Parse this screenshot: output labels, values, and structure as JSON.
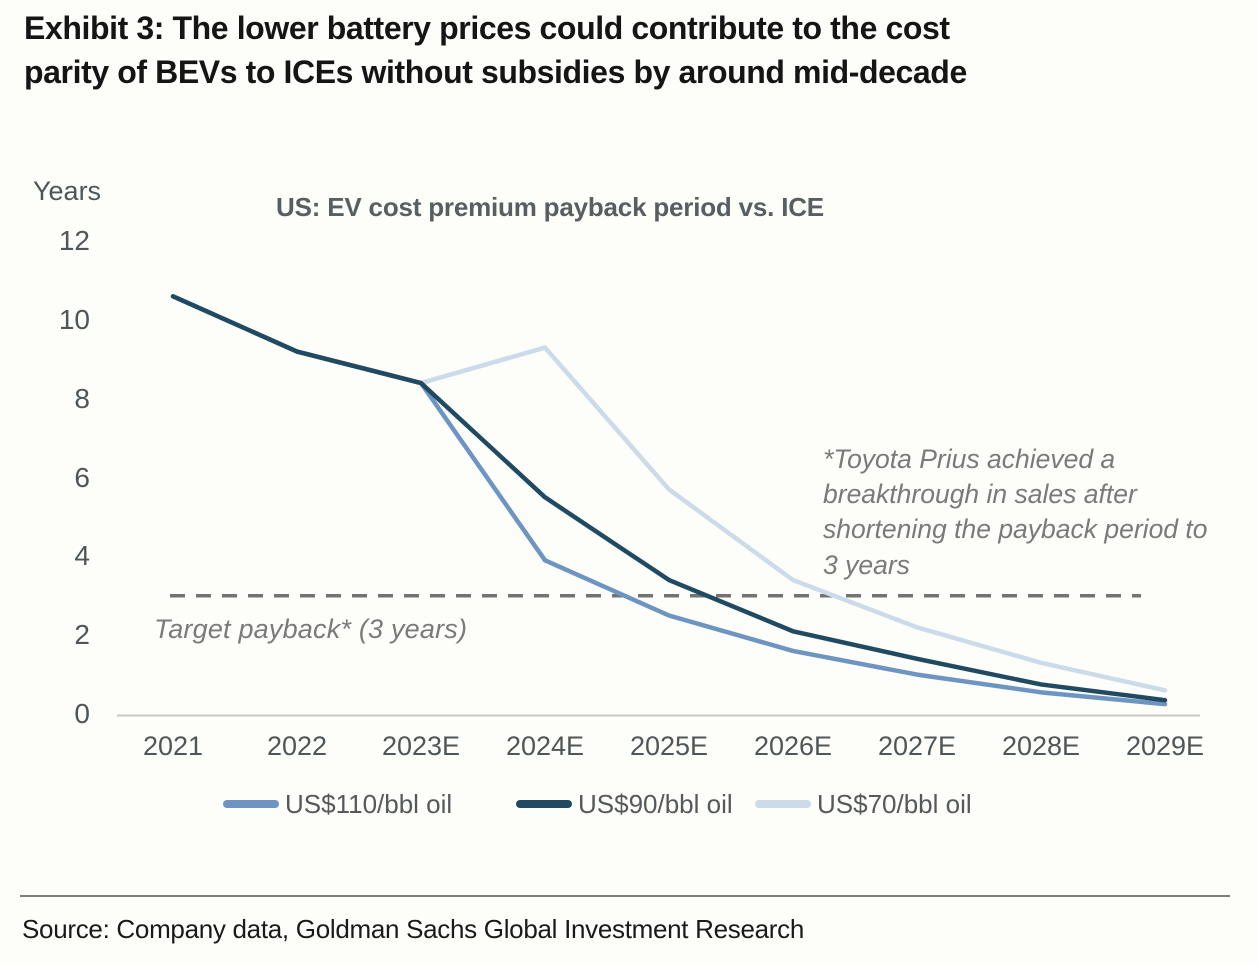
{
  "header": {
    "title_lines": [
      "Exhibit 3: The lower battery prices could contribute to the cost",
      "parity of BEVs to ICEs without subsidies by around mid-decade"
    ]
  },
  "chart_data": {
    "type": "line",
    "title": "US: EV cost premium payback period vs. ICE",
    "ylabel": "Years",
    "xlabel": "",
    "ylim": [
      0,
      12
    ],
    "yticks": [
      12,
      10,
      8,
      6,
      4,
      2,
      0
    ],
    "grid": false,
    "legend_position": "bottom",
    "categories": [
      "2021",
      "2022",
      "2023E",
      "2024E",
      "2025E",
      "2026E",
      "2027E",
      "2028E",
      "2029E"
    ],
    "series": [
      {
        "name": "US$110/bbl oil",
        "color": "#6e95c1",
        "values": [
          10.6,
          9.2,
          8.4,
          3.9,
          2.5,
          1.6,
          1.0,
          0.55,
          0.25
        ]
      },
      {
        "name": "US$90/bbl oil",
        "color": "#204a62",
        "values": [
          10.6,
          9.2,
          8.4,
          5.5,
          3.4,
          2.1,
          1.4,
          0.75,
          0.35
        ]
      },
      {
        "name": "US$70/bbl oil",
        "color": "#ccdbea",
        "values": [
          10.6,
          9.2,
          8.4,
          9.3,
          5.7,
          3.4,
          2.2,
          1.3,
          0.6
        ]
      }
    ],
    "target_line": {
      "value": 3,
      "label": "Target payback* (3 years)",
      "style": "dashed",
      "color": "#737373"
    },
    "annotation": "*Toyota Prius achieved a breakthrough in sales after shortening the payback period to 3 years"
  },
  "footer": {
    "source": "Source: Company data, Goldman Sachs Global Investment Research"
  }
}
